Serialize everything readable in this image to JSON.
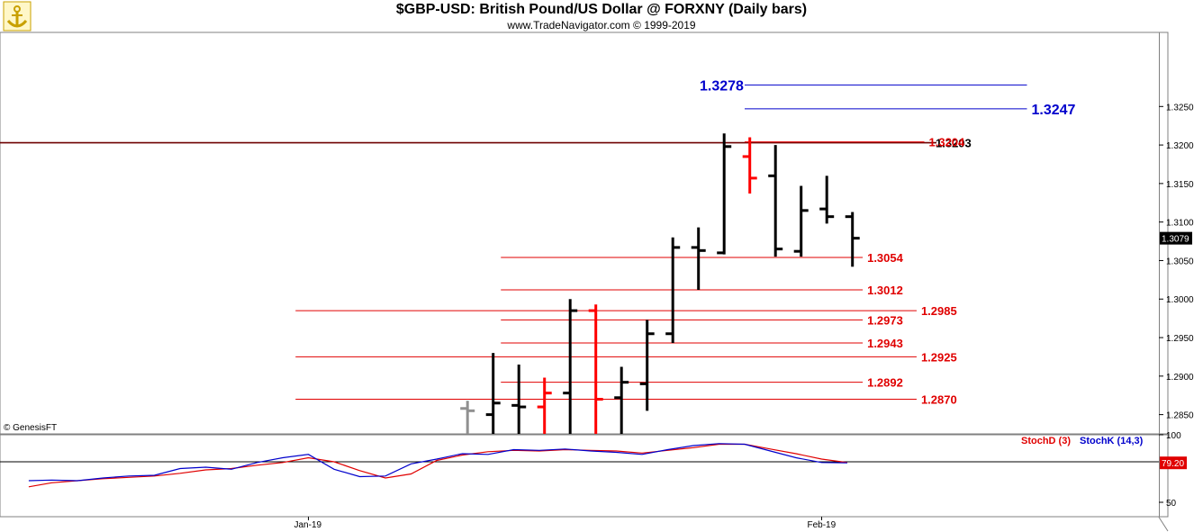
{
  "header": {
    "title": "$GBP-USD:  British Pound/US Dollar @ FORXNY  (Daily bars)",
    "subtitle": "www.TradeNavigator.com © 1999-2019"
  },
  "credit": "© GenesisFT",
  "colors": {
    "up_bar": "#000000",
    "down_bar": "#ff0000",
    "level_red": "#e00000",
    "level_blue": "#0000cc",
    "stoch_d": "#e00000",
    "stoch_k": "#0000cc",
    "grid_frame": "#808080"
  },
  "chart_data": [
    {
      "type": "ohlc",
      "y_axis_ticks": [
        "1.3250",
        "1.3200",
        "1.3150",
        "1.3100",
        "1.3050",
        "1.3000",
        "1.2950",
        "1.2900",
        "1.2850"
      ],
      "ylim": [
        1.2825,
        1.3345
      ],
      "last_price_label": "1.3079",
      "bars": [
        {
          "x": 17.2,
          "o": 1.2858,
          "h": 1.2868,
          "l": 1.2825,
          "c": 1.2855,
          "color": "gray"
        },
        {
          "x": 18.2,
          "o": 1.285,
          "h": 1.293,
          "l": 1.2825,
          "c": 1.2865,
          "color": "black"
        },
        {
          "x": 19.2,
          "o": 1.2862,
          "h": 1.2915,
          "l": 1.2825,
          "c": 1.286,
          "color": "black"
        },
        {
          "x": 20.2,
          "o": 1.286,
          "h": 1.2898,
          "l": 1.2825,
          "c": 1.2878,
          "color": "red"
        },
        {
          "x": 21.2,
          "o": 1.2878,
          "h": 1.3,
          "l": 1.2825,
          "c": 1.2985,
          "color": "black"
        },
        {
          "x": 22.2,
          "o": 1.2985,
          "h": 1.2993,
          "l": 1.2825,
          "c": 1.287,
          "color": "red"
        },
        {
          "x": 23.2,
          "o": 1.2872,
          "h": 1.2912,
          "l": 1.2825,
          "c": 1.2892,
          "color": "black"
        },
        {
          "x": 24.2,
          "o": 1.289,
          "h": 1.2973,
          "l": 1.2855,
          "c": 1.2955,
          "color": "black"
        },
        {
          "x": 25.2,
          "o": 1.2955,
          "h": 1.308,
          "l": 1.2943,
          "c": 1.3067,
          "color": "black"
        },
        {
          "x": 26.2,
          "o": 1.3067,
          "h": 1.3093,
          "l": 1.3012,
          "c": 1.3063,
          "color": "black"
        },
        {
          "x": 27.2,
          "o": 1.306,
          "h": 1.3215,
          "l": 1.3058,
          "c": 1.3198,
          "color": "black"
        },
        {
          "x": 28.2,
          "o": 1.3185,
          "h": 1.321,
          "l": 1.3137,
          "c": 1.3157,
          "color": "red"
        },
        {
          "x": 29.2,
          "o": 1.316,
          "h": 1.32,
          "l": 1.3055,
          "c": 1.3065,
          "color": "black"
        },
        {
          "x": 30.2,
          "o": 1.3062,
          "h": 1.3147,
          "l": 1.3055,
          "c": 1.3115,
          "color": "black"
        },
        {
          "x": 31.2,
          "o": 1.3117,
          "h": 1.316,
          "l": 1.3098,
          "c": 1.3107,
          "color": "black"
        },
        {
          "x": 32.2,
          "o": 1.3107,
          "h": 1.3113,
          "l": 1.3042,
          "c": 1.3079,
          "color": "black"
        }
      ],
      "levels": [
        {
          "label": "1.3278",
          "value": 1.3278,
          "color": "blue",
          "from": 28.0,
          "to": 39.0,
          "label_side": "left"
        },
        {
          "label": "1.3247",
          "value": 1.3247,
          "color": "blue",
          "from": 28.0,
          "to": 39.0,
          "label_side": "right"
        },
        {
          "label": "1.3204",
          "value": 1.3204,
          "color": "red",
          "from": 28.0,
          "to": 35.0,
          "label_side": "right"
        },
        {
          "label": "1.3054",
          "value": 1.3054,
          "color": "red",
          "from": 18.5,
          "to": 32.6,
          "label_side": "right"
        },
        {
          "label": "1.3012",
          "value": 1.3012,
          "color": "red",
          "from": 18.5,
          "to": 32.6,
          "label_side": "right"
        },
        {
          "label": "1.2985",
          "value": 1.2985,
          "color": "red",
          "from": 10.5,
          "to": 34.7,
          "label_side": "right"
        },
        {
          "label": "1.2973",
          "value": 1.2973,
          "color": "red",
          "from": 18.5,
          "to": 32.6,
          "label_side": "right"
        },
        {
          "label": "1.2943",
          "value": 1.2943,
          "color": "red",
          "from": 18.5,
          "to": 32.6,
          "label_side": "right"
        },
        {
          "label": "1.2925",
          "value": 1.2925,
          "color": "red",
          "from": 10.5,
          "to": 34.7,
          "label_side": "right"
        },
        {
          "label": "1.2892",
          "value": 1.2892,
          "color": "red",
          "from": 18.5,
          "to": 32.6,
          "label_side": "right"
        },
        {
          "label": "1.2870",
          "value": 1.287,
          "color": "red",
          "from": 10.5,
          "to": 34.7,
          "label_side": "right"
        }
      ],
      "horizontal_line": {
        "value": 1.3203,
        "label": "1.3203"
      }
    },
    {
      "type": "line",
      "y_axis_ticks": [
        "100",
        "50"
      ],
      "ylim": [
        40,
        100
      ],
      "reference_line": 80,
      "last_value_label": "79.20",
      "legend": [
        "StochD (3)",
        "StochK (14,3)"
      ],
      "x_axis_ticks": [
        {
          "label": "Jan-19",
          "x": 11
        },
        {
          "label": "Feb-19",
          "x": 31
        }
      ],
      "series": [
        {
          "name": "StochD (3)",
          "color": "red",
          "points": [
            [
              0.1,
              61.5
            ],
            [
              1,
              64.5
            ],
            [
              2,
              66
            ],
            [
              3,
              67.5
            ],
            [
              4,
              68.5
            ],
            [
              5,
              69.5
            ],
            [
              6,
              71.5
            ],
            [
              7,
              74
            ],
            [
              8,
              75
            ],
            [
              9,
              77.5
            ],
            [
              10,
              79.5
            ],
            [
              11,
              83
            ],
            [
              12,
              80
            ],
            [
              13,
              73.5
            ],
            [
              14,
              68
            ],
            [
              15,
              71
            ],
            [
              16,
              81
            ],
            [
              17,
              85
            ],
            [
              18,
              87.5
            ],
            [
              19,
              88.5
            ],
            [
              20,
              88
            ],
            [
              21,
              89
            ],
            [
              22,
              88.5
            ],
            [
              23,
              88
            ],
            [
              24,
              86.5
            ],
            [
              25,
              88.5
            ],
            [
              26,
              90.5
            ],
            [
              27,
              93
            ],
            [
              28,
              93
            ],
            [
              29,
              89.5
            ],
            [
              30,
              86
            ],
            [
              31,
              82
            ],
            [
              32,
              79.5
            ]
          ]
        },
        {
          "name": "StochK (14,3)",
          "color": "blue",
          "points": [
            [
              0.1,
              66
            ],
            [
              1,
              66.5
            ],
            [
              2,
              66
            ],
            [
              3,
              68
            ],
            [
              4,
              69.5
            ],
            [
              5,
              70
            ],
            [
              6,
              75
            ],
            [
              7,
              76
            ],
            [
              8,
              74.5
            ],
            [
              9,
              79.5
            ],
            [
              10,
              83
            ],
            [
              11,
              85.5
            ],
            [
              12,
              74.5
            ],
            [
              13,
              69
            ],
            [
              14,
              69.5
            ],
            [
              15,
              78.5
            ],
            [
              16,
              82
            ],
            [
              17,
              86
            ],
            [
              18,
              85.5
            ],
            [
              19,
              89
            ],
            [
              20,
              88.5
            ],
            [
              21,
              89.5
            ],
            [
              22,
              88
            ],
            [
              23,
              87
            ],
            [
              24,
              85.5
            ],
            [
              25,
              89
            ],
            [
              26,
              92
            ],
            [
              27,
              93.5
            ],
            [
              28,
              93
            ],
            [
              29,
              88
            ],
            [
              30,
              83
            ],
            [
              31,
              79.5
            ],
            [
              32,
              79.2
            ]
          ]
        }
      ]
    }
  ]
}
